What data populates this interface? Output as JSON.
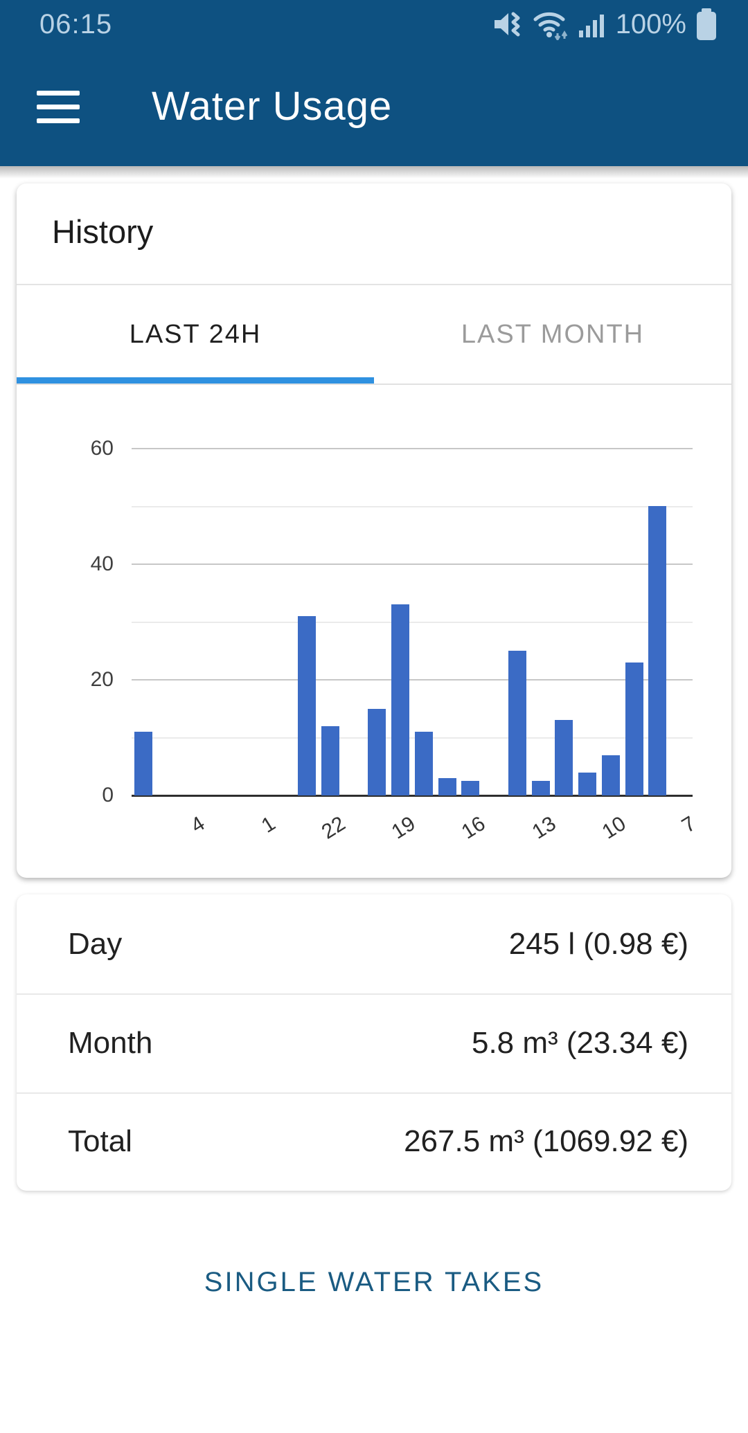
{
  "status_bar": {
    "time": "06:15",
    "battery_percent": "100%",
    "icons": [
      "mute-icon",
      "wifi-icon",
      "signal-icon",
      "battery-icon"
    ]
  },
  "app_bar": {
    "title": "Water Usage"
  },
  "history_card": {
    "title": "History",
    "tabs": [
      {
        "label": "LAST 24H",
        "active": true
      },
      {
        "label": "LAST MONTH",
        "active": false
      }
    ]
  },
  "chart_data": {
    "type": "bar",
    "title": "",
    "xlabel": "",
    "ylabel": "",
    "values": [
      11,
      0,
      0,
      0,
      0,
      0,
      0,
      31,
      12,
      0,
      15,
      33,
      11,
      3,
      2.5,
      0,
      25,
      2.5,
      13,
      4,
      7,
      23,
      50,
      0
    ],
    "x_tick_slots": [
      2,
      5,
      8,
      11,
      14,
      17,
      20,
      23
    ],
    "x_tick_labels": [
      "4",
      "1",
      "22",
      "19",
      "16",
      "13",
      "10",
      "7"
    ],
    "y_ticks": [
      0,
      20,
      40,
      60
    ],
    "gridlines": [
      0,
      10,
      20,
      30,
      40,
      50,
      60
    ],
    "ylim": [
      0,
      65
    ],
    "grid": true,
    "legend": "none",
    "bar_color": "#3b6bc5"
  },
  "summary": {
    "rows": [
      {
        "label": "Day",
        "value": "245 l (0.98 €)"
      },
      {
        "label": "Month",
        "value": "5.8 m³ (23.34 €)"
      },
      {
        "label": "Total",
        "value": "267.5 m³ (1069.92 €)"
      }
    ]
  },
  "actions": {
    "single_water_takes": "SINGLE WATER TAKES"
  },
  "colors": {
    "app_bar_bg": "#0e5181",
    "tab_underline": "#2f91e0",
    "bar_color": "#3b6bc5",
    "button_text": "#1a5b82",
    "status_icon": "#b9d2e5"
  }
}
